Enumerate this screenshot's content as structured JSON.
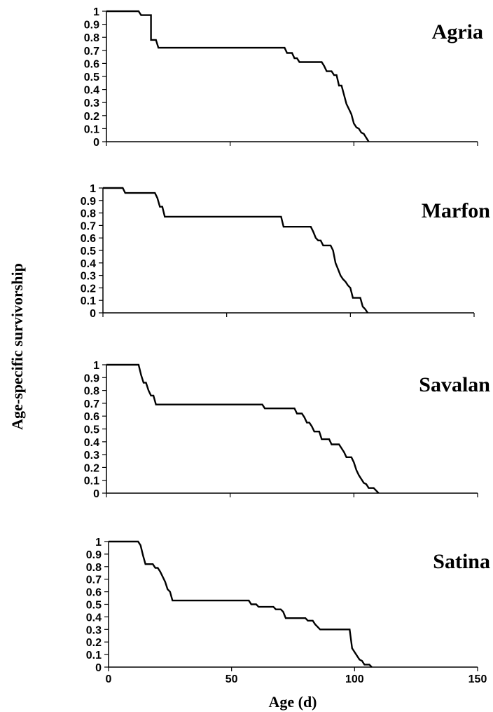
{
  "chart_data": {
    "type": "line",
    "ylabel": "Age-specific survivorship",
    "xlabel": "Age (d)",
    "xlim": [
      0,
      150
    ],
    "ylim": [
      0,
      1
    ],
    "x_ticks": [
      "0",
      "50",
      "100",
      "150"
    ],
    "y_ticks": [
      "0",
      "0.1",
      "0.2",
      "0.3",
      "0.4",
      "0.5",
      "0.6",
      "0.7",
      "0.8",
      "0.9",
      "1"
    ],
    "grid": false,
    "legend": "none",
    "line_color": "#000000",
    "series": [
      {
        "name": "Agria",
        "points": [
          [
            0,
            1
          ],
          [
            13,
            1
          ],
          [
            14,
            0.97
          ],
          [
            18,
            0.97
          ],
          [
            18,
            0.78
          ],
          [
            20,
            0.78
          ],
          [
            21,
            0.72
          ],
          [
            72,
            0.72
          ],
          [
            73,
            0.68
          ],
          [
            75,
            0.68
          ],
          [
            76,
            0.64
          ],
          [
            77,
            0.64
          ],
          [
            78,
            0.61
          ],
          [
            87,
            0.61
          ],
          [
            88,
            0.58
          ],
          [
            89,
            0.54
          ],
          [
            91,
            0.54
          ],
          [
            92,
            0.51
          ],
          [
            93,
            0.51
          ],
          [
            94,
            0.43
          ],
          [
            95,
            0.43
          ],
          [
            96,
            0.36
          ],
          [
            97,
            0.29
          ],
          [
            98,
            0.25
          ],
          [
            99,
            0.21
          ],
          [
            100,
            0.14
          ],
          [
            101,
            0.11
          ],
          [
            102,
            0.1
          ],
          [
            103,
            0.07
          ],
          [
            104,
            0.06
          ],
          [
            105,
            0.03
          ],
          [
            106,
            0
          ]
        ]
      },
      {
        "name": "Marfon",
        "points": [
          [
            0,
            1
          ],
          [
            8,
            1
          ],
          [
            9,
            0.96
          ],
          [
            21,
            0.96
          ],
          [
            22,
            0.92
          ],
          [
            23,
            0.85
          ],
          [
            24,
            0.85
          ],
          [
            25,
            0.77
          ],
          [
            72,
            0.77
          ],
          [
            73,
            0.69
          ],
          [
            84,
            0.69
          ],
          [
            85,
            0.65
          ],
          [
            86,
            0.6
          ],
          [
            87,
            0.58
          ],
          [
            88,
            0.58
          ],
          [
            89,
            0.54
          ],
          [
            92,
            0.54
          ],
          [
            93,
            0.5
          ],
          [
            94,
            0.4
          ],
          [
            95,
            0.35
          ],
          [
            96,
            0.3
          ],
          [
            97,
            0.27
          ],
          [
            98,
            0.25
          ],
          [
            99,
            0.22
          ],
          [
            100,
            0.2
          ],
          [
            101,
            0.12
          ],
          [
            104,
            0.12
          ],
          [
            105,
            0.05
          ],
          [
            106,
            0.03
          ],
          [
            107,
            0
          ]
        ]
      },
      {
        "name": "Savalan",
        "points": [
          [
            0,
            1
          ],
          [
            13,
            1
          ],
          [
            14,
            0.92
          ],
          [
            15,
            0.86
          ],
          [
            16,
            0.86
          ],
          [
            17,
            0.8
          ],
          [
            18,
            0.76
          ],
          [
            19,
            0.76
          ],
          [
            20,
            0.69
          ],
          [
            63,
            0.69
          ],
          [
            64,
            0.66
          ],
          [
            76,
            0.66
          ],
          [
            77,
            0.62
          ],
          [
            79,
            0.62
          ],
          [
            80,
            0.59
          ],
          [
            81,
            0.55
          ],
          [
            82,
            0.55
          ],
          [
            83,
            0.52
          ],
          [
            84,
            0.48
          ],
          [
            86,
            0.48
          ],
          [
            87,
            0.42
          ],
          [
            90,
            0.42
          ],
          [
            91,
            0.38
          ],
          [
            94,
            0.38
          ],
          [
            95,
            0.35
          ],
          [
            96,
            0.32
          ],
          [
            97,
            0.28
          ],
          [
            99,
            0.28
          ],
          [
            100,
            0.24
          ],
          [
            101,
            0.18
          ],
          [
            102,
            0.14
          ],
          [
            103,
            0.11
          ],
          [
            104,
            0.08
          ],
          [
            105,
            0.07
          ],
          [
            106,
            0.04
          ],
          [
            108,
            0.04
          ],
          [
            109,
            0.02
          ],
          [
            110,
            0
          ]
        ]
      },
      {
        "name": "Satina",
        "points": [
          [
            0,
            1
          ],
          [
            12,
            1
          ],
          [
            13,
            0.97
          ],
          [
            14,
            0.89
          ],
          [
            15,
            0.82
          ],
          [
            18,
            0.82
          ],
          [
            19,
            0.79
          ],
          [
            20,
            0.79
          ],
          [
            21,
            0.76
          ],
          [
            22,
            0.72
          ],
          [
            23,
            0.68
          ],
          [
            24,
            0.62
          ],
          [
            25,
            0.6
          ],
          [
            26,
            0.53
          ],
          [
            57,
            0.53
          ],
          [
            58,
            0.5
          ],
          [
            60,
            0.5
          ],
          [
            61,
            0.48
          ],
          [
            67,
            0.48
          ],
          [
            68,
            0.46
          ],
          [
            70,
            0.46
          ],
          [
            71,
            0.44
          ],
          [
            72,
            0.39
          ],
          [
            80,
            0.39
          ],
          [
            81,
            0.37
          ],
          [
            83,
            0.37
          ],
          [
            84,
            0.34
          ],
          [
            85,
            0.32
          ],
          [
            86,
            0.3
          ],
          [
            98,
            0.3
          ],
          [
            99,
            0.15
          ],
          [
            100,
            0.12
          ],
          [
            101,
            0.09
          ],
          [
            102,
            0.06
          ],
          [
            103,
            0.05
          ],
          [
            104,
            0.02
          ],
          [
            106,
            0.02
          ],
          [
            107,
            0
          ]
        ]
      }
    ]
  }
}
